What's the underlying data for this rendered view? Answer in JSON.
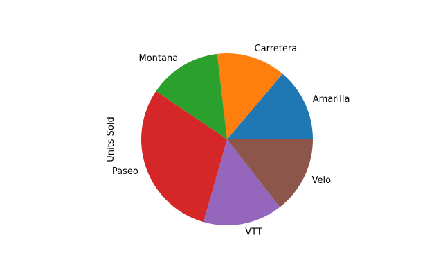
{
  "chart_data": {
    "type": "pie",
    "ylabel": "Units Sold",
    "start_angle_deg": 0,
    "direction": "counterclockwise",
    "slices": [
      {
        "label": "Amarilla",
        "value": 155315,
        "color": "#1f77b4"
      },
      {
        "label": "Carretera",
        "value": 146846,
        "color": "#ff7f0e"
      },
      {
        "label": "Montana",
        "value": 154198,
        "color": "#2ca02c"
      },
      {
        "label": "Paseo",
        "value": 338240,
        "color": "#d62728"
      },
      {
        "label": "VTT",
        "value": 168783,
        "color": "#9467bd"
      },
      {
        "label": "Velo",
        "value": 162425,
        "color": "#8c564b"
      }
    ]
  }
}
